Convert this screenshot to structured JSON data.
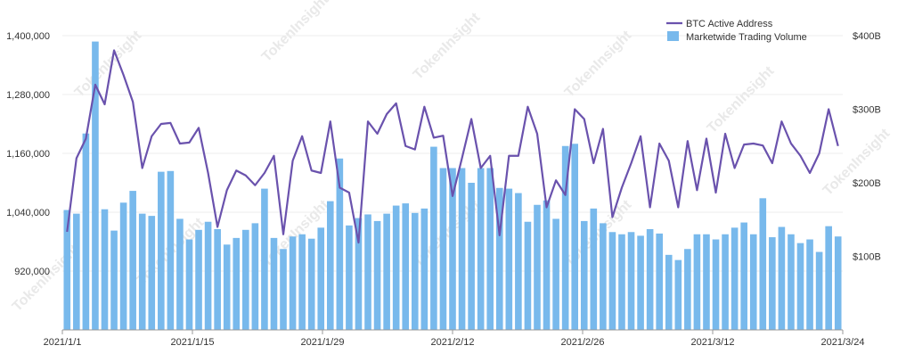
{
  "watermark": "TokenInsight",
  "colors": {
    "bars": "#78b9ec",
    "line": "#6a52ad",
    "grid": "#eeeeee",
    "axis": "#999999",
    "text": "#333333"
  },
  "chart_data": {
    "type": "bar+line",
    "title": "",
    "legend_position": "top-right",
    "grid": true,
    "x_ticks": [
      "2021/1/1",
      "2021/1/15",
      "2021/1/29",
      "2021/2/12",
      "2021/2/26",
      "2021/3/12",
      "2021/3/24"
    ],
    "x_start": "2021/1/1",
    "x_end": "2021/3/24",
    "left_axis": {
      "ticks": [
        "1,400,000",
        "1,280,000",
        "1,160,000",
        "1,040,000",
        "920,000"
      ],
      "tick_values": [
        1400000,
        1280000,
        1160000,
        1040000,
        920000
      ],
      "range": [
        800000,
        1400000
      ]
    },
    "right_axis": {
      "ticks": [
        "$400B",
        "$300B",
        "$200B",
        "$100B"
      ],
      "tick_values": [
        400,
        300,
        200,
        100
      ],
      "unit": "B USD",
      "range": [
        0,
        400
      ]
    },
    "series": [
      {
        "name": "BTC Active Address",
        "type": "line",
        "axis": "left",
        "values": [
          1000000,
          1150000,
          1190000,
          1300000,
          1260000,
          1370000,
          1320000,
          1265000,
          1130000,
          1195000,
          1220000,
          1222000,
          1180000,
          1182000,
          1212000,
          1120000,
          1010000,
          1085000,
          1125000,
          1115000,
          1095000,
          1120000,
          1155000,
          995000,
          1145000,
          1195000,
          1125000,
          1120000,
          1225000,
          1090000,
          1080000,
          978000,
          1225000,
          1200000,
          1240000,
          1262000,
          1175000,
          1168000,
          1255000,
          1192000,
          1196000,
          1073000,
          1150000,
          1230000,
          1130000,
          1155000,
          993000,
          1155000,
          1155000,
          1255000,
          1200000,
          1050000,
          1105000,
          1075000,
          1250000,
          1230000,
          1140000,
          1210000,
          1030000,
          1090000,
          1140000,
          1195000,
          1050000,
          1180000,
          1145000,
          1050000,
          1185000,
          1085000,
          1190000,
          1080000,
          1200000,
          1130000,
          1178000,
          1180000,
          1176000,
          1140000,
          1225000,
          1180000,
          1155000,
          1120000,
          1160000,
          1250000,
          1175000
        ]
      },
      {
        "name": "Marketwide Trading Volume",
        "type": "bar",
        "axis": "right",
        "values": [
          163,
          158,
          267,
          392,
          164,
          135,
          173,
          189,
          158,
          155,
          215,
          216,
          151,
          123,
          136,
          147,
          137,
          116,
          125,
          136,
          145,
          192,
          125,
          110,
          127,
          130,
          124,
          139,
          175,
          233,
          142,
          152,
          157,
          148,
          158,
          169,
          172,
          159,
          165,
          249,
          220,
          220,
          220,
          200,
          220,
          220,
          193,
          192,
          186,
          147,
          170,
          176,
          151,
          250,
          253,
          148,
          165,
          145,
          133,
          130,
          133,
          128,
          137,
          131,
          102,
          95,
          110,
          130,
          130,
          123,
          130,
          139,
          146,
          130,
          179,
          126,
          140,
          130,
          118,
          123,
          106,
          141,
          127
        ]
      }
    ]
  }
}
